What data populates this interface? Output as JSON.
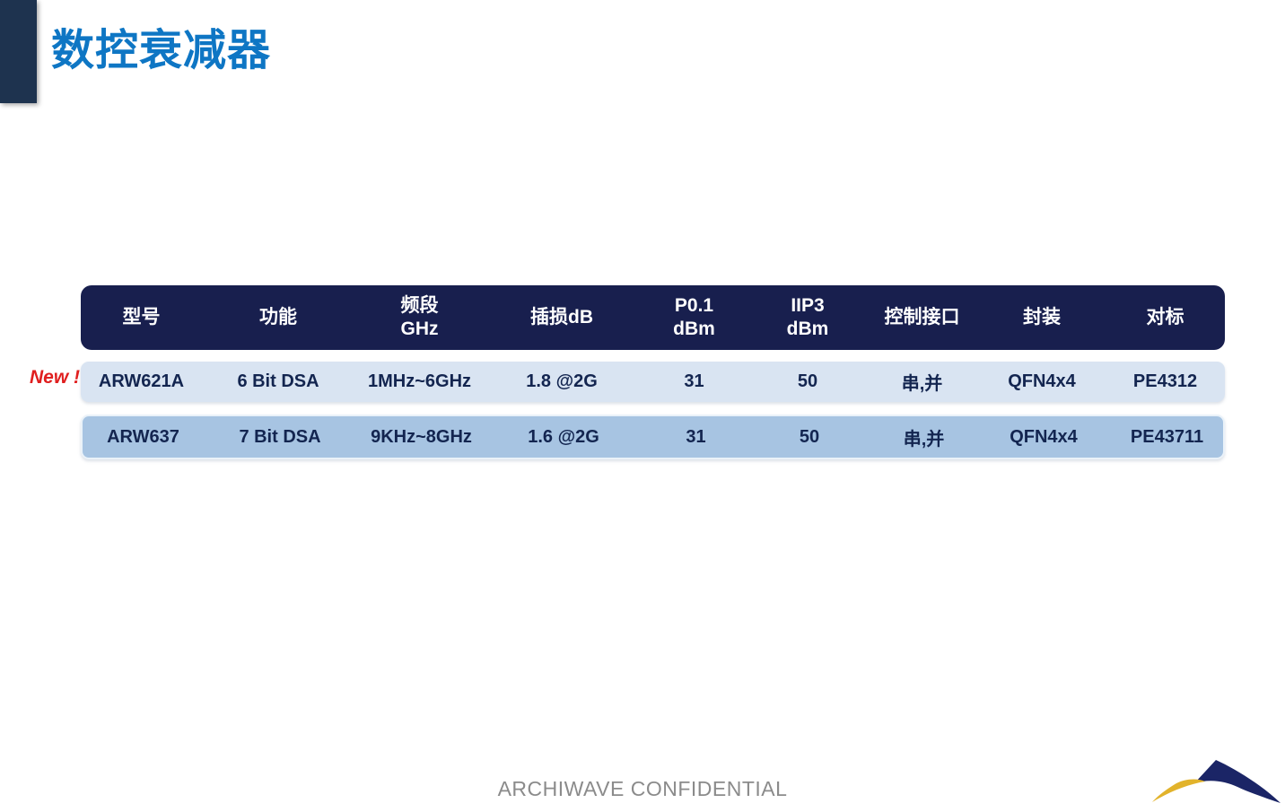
{
  "title": {
    "text": "数控衰减器"
  },
  "badge": {
    "text": "New !"
  },
  "table": {
    "columns": [
      {
        "lines": [
          "型号"
        ]
      },
      {
        "lines": [
          "功能"
        ]
      },
      {
        "lines": [
          "频段",
          "GHz"
        ]
      },
      {
        "lines": [
          "插损dB"
        ]
      },
      {
        "lines": [
          "P0.1",
          "dBm"
        ]
      },
      {
        "lines": [
          "IIP3",
          "dBm"
        ]
      },
      {
        "lines": [
          "控制接口"
        ]
      },
      {
        "lines": [
          "封装"
        ]
      },
      {
        "lines": [
          "对标"
        ]
      }
    ],
    "rows": [
      {
        "is_new": true,
        "cells": [
          "ARW621A",
          "6 Bit DSA",
          "1MHz~6GHz",
          "1.8 @2G",
          "31",
          "50",
          "串,并",
          "QFN4x4",
          "PE4312"
        ]
      },
      {
        "is_new": false,
        "cells": [
          "ARW637",
          "7 Bit DSA",
          "9KHz~8GHz",
          "1.6 @2G",
          "31",
          "50",
          "串,并",
          "QFN4x4",
          "PE43711"
        ]
      }
    ]
  },
  "footer": {
    "text": "ARCHIWAVE CONFIDENTIAL"
  },
  "colors": {
    "title_blue": "#0e76c4",
    "accent_bar": "#1e334f",
    "header_bg": "#181f4e",
    "row1_bg": "#d9e4f2",
    "row2_bg": "#a7c4e2",
    "cell_text": "#132550",
    "new_red": "#e01f1f",
    "footer_gray": "#8b8b8b",
    "logo_navy": "#1b2566",
    "logo_gold": "#e2b32b"
  }
}
